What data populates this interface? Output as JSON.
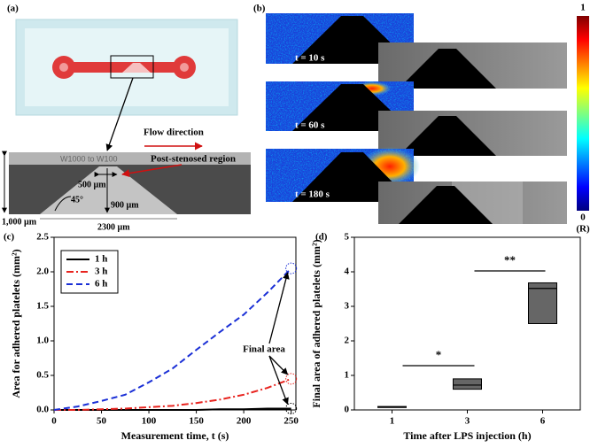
{
  "panel_a": {
    "label": "(a)",
    "flow_direction": "Flow direction",
    "channel_width": "W1000 to W100",
    "region": "Post-stenosed region",
    "gap": "500 µm",
    "angle": "45°",
    "height": "900 µm",
    "width": "1,000 µm",
    "length": "2300 µm"
  },
  "panel_b": {
    "label": "(b)",
    "frames": [
      "t = 10 s",
      "t = 60 s",
      "t = 180 s"
    ],
    "colorbar": {
      "ticks": [
        0,
        1
      ],
      "label": "(R)"
    }
  },
  "chart_data": [
    {
      "type": "line",
      "title": "(c)",
      "xlabel": "Measurement time, t (s)",
      "ylabel": "Area for adhered platelets (mm²)",
      "x": [
        0,
        25,
        50,
        75,
        100,
        125,
        150,
        175,
        200,
        225,
        250
      ],
      "series": [
        {
          "name": "1 h",
          "color": "#000000",
          "dash": "solid",
          "values": [
            0,
            0,
            0,
            0,
            0,
            0,
            0,
            0.01,
            0.01,
            0.02,
            0.02
          ]
        },
        {
          "name": "3 h",
          "color": "#e8231e",
          "dash": "dashdot",
          "values": [
            0,
            0,
            0.01,
            0.02,
            0.04,
            0.06,
            0.1,
            0.15,
            0.22,
            0.32,
            0.45
          ]
        },
        {
          "name": "6 h",
          "color": "#1a2fd6",
          "dash": "dashed",
          "values": [
            0,
            0.05,
            0.13,
            0.22,
            0.4,
            0.6,
            0.87,
            1.13,
            1.38,
            1.7,
            2.05
          ]
        }
      ],
      "xlim": [
        0,
        255
      ],
      "ylim": [
        0,
        2.5
      ],
      "xticks": [
        0,
        50,
        100,
        150,
        200,
        250
      ],
      "yticks": [
        {
          "value": 0,
          "label": "0.0"
        },
        {
          "value": 0.5,
          "label": "0.5"
        },
        {
          "value": 1,
          "label": "1.0"
        },
        {
          "value": 1.5,
          "label": "1.5"
        },
        {
          "value": 2,
          "label": "2.0"
        },
        {
          "value": 2.5,
          "label": "2.5"
        }
      ],
      "legend": "upper left",
      "annotation": "Final area"
    },
    {
      "type": "box",
      "title": "(d)",
      "xlabel": "Time after LPS injection (h)",
      "ylabel": "Final area of adhered platelets (mm²)",
      "categories": [
        "1",
        "3",
        "6"
      ],
      "boxes": [
        {
          "q1": 0.07,
          "median": 0.08,
          "q3": 0.1
        },
        {
          "q1": 0.6,
          "median": 0.72,
          "q3": 0.9
        },
        {
          "q1": 2.5,
          "median": 3.52,
          "q3": 3.68
        }
      ],
      "color": "#666666",
      "ylim": [
        0,
        5
      ],
      "yticks": [
        0,
        1,
        2,
        3,
        4,
        5
      ],
      "significance": [
        "*",
        "**"
      ]
    }
  ]
}
